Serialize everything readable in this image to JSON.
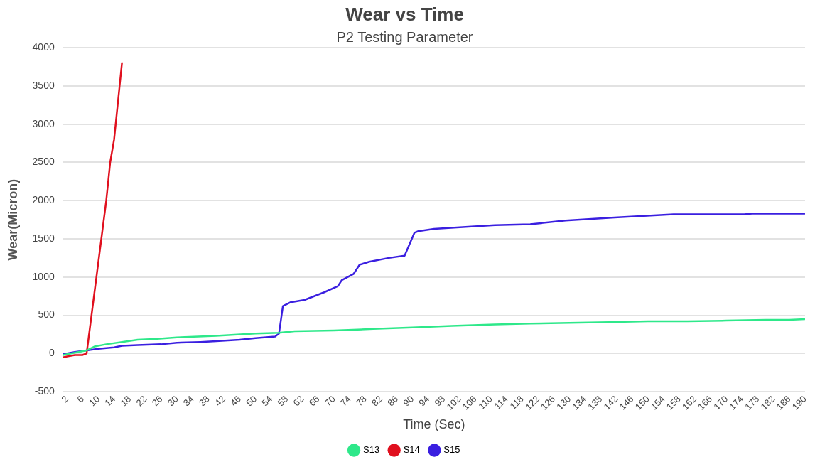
{
  "chart_data": {
    "type": "line",
    "title": "Wear vs Time",
    "subtitle": "P2 Testing Parameter",
    "xlabel": "Time (Sec)",
    "ylabel": "Wear(Micron)",
    "xlim": [
      1,
      190
    ],
    "xticks": [
      2,
      6,
      10,
      14,
      18,
      22,
      26,
      30,
      34,
      38,
      42,
      46,
      50,
      54,
      58,
      62,
      66,
      70,
      74,
      78,
      82,
      86,
      90,
      94,
      98,
      102,
      106,
      110,
      114,
      118,
      122,
      126,
      130,
      134,
      138,
      142,
      146,
      150,
      154,
      158,
      162,
      166,
      170,
      174,
      178,
      182,
      186,
      190
    ],
    "ylim": [
      -500,
      4000
    ],
    "yticks": [
      -500,
      0,
      500,
      1000,
      1500,
      2000,
      2500,
      3000,
      3500,
      4000
    ],
    "grid": "y",
    "legend": "bottom",
    "marker": "none",
    "line_style": "solid",
    "series": [
      {
        "name": "S13",
        "color": "#2ee88a",
        "x": [
          1,
          4,
          7,
          9,
          12,
          16,
          20,
          25,
          30,
          40,
          50,
          56,
          60,
          70,
          80,
          90,
          100,
          111,
          120,
          130,
          140,
          150,
          160,
          170,
          180,
          186,
          190
        ],
        "values": [
          -20,
          10,
          40,
          90,
          120,
          150,
          180,
          190,
          210,
          230,
          260,
          270,
          290,
          300,
          320,
          340,
          360,
          380,
          390,
          400,
          410,
          420,
          420,
          430,
          440,
          440,
          450
        ]
      },
      {
        "name": "S14",
        "color": "#e0101e",
        "x": [
          1,
          2,
          3,
          4,
          5,
          6,
          7,
          8,
          9,
          10,
          11,
          12,
          13,
          14,
          15,
          16
        ],
        "values": [
          -50,
          -40,
          -30,
          -20,
          -20,
          -20,
          0,
          400,
          800,
          1200,
          1600,
          2000,
          2500,
          2800,
          3300,
          3800
        ]
      },
      {
        "name": "S15",
        "color": "#3a1fe0",
        "x": [
          1,
          4,
          7,
          10,
          14,
          16,
          20,
          26,
          30,
          36,
          40,
          46,
          50,
          55,
          56,
          57,
          59,
          62.5,
          67.5,
          71,
          72,
          75,
          76.5,
          79,
          84,
          88,
          90.5,
          91.5,
          95.5,
          105,
          111,
          120,
          129,
          141.5,
          156.5,
          174.5,
          176.5,
          190
        ],
        "values": [
          -10,
          20,
          40,
          60,
          80,
          100,
          110,
          120,
          140,
          150,
          160,
          180,
          200,
          220,
          260,
          620,
          670,
          700,
          800,
          880,
          960,
          1040,
          1160,
          1200,
          1250,
          1280,
          1580,
          1600,
          1630,
          1660,
          1680,
          1690,
          1740,
          1780,
          1820,
          1820,
          1830,
          1830
        ]
      }
    ]
  }
}
